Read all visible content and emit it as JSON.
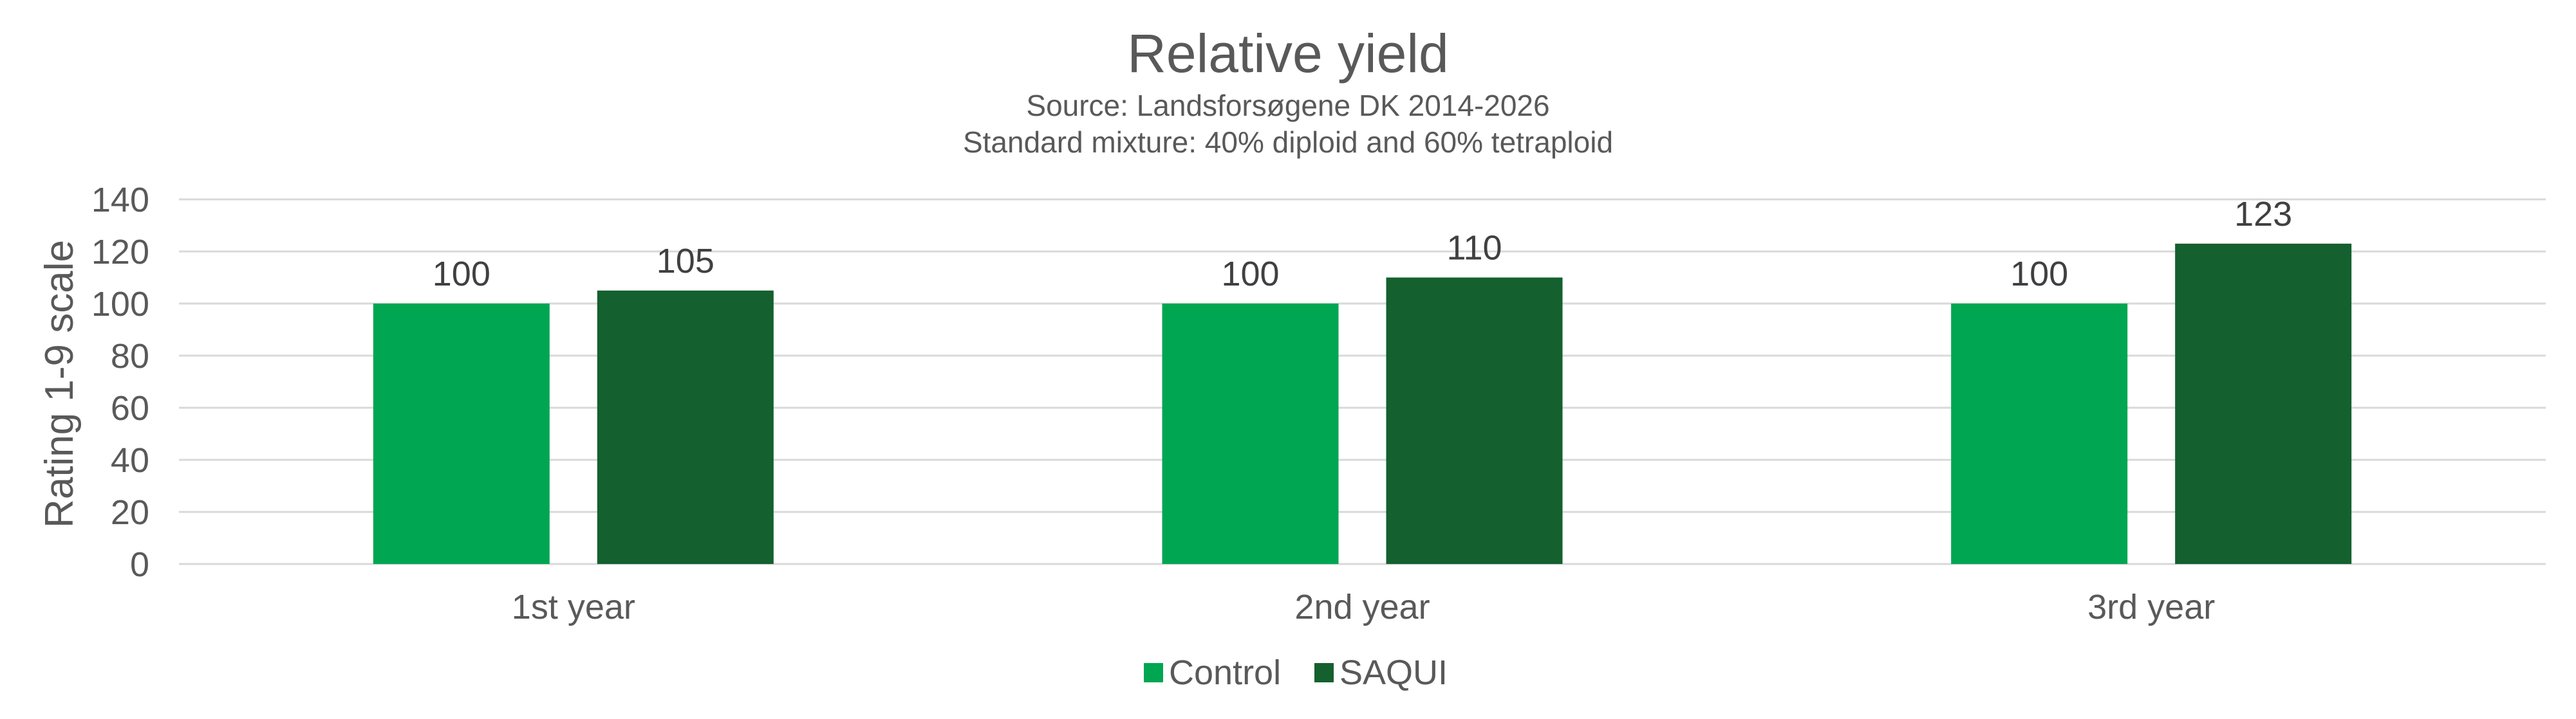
{
  "chart_data": {
    "type": "bar",
    "title": "Relative yield",
    "subtitle": [
      "Source: Landsforsøgene DK 2014-2026",
      "Standard mixture: 40% diploid and 60% tetraploid"
    ],
    "xlabel": "",
    "ylabel": "Rating 1-9 scale",
    "categories": [
      "1st year",
      "2nd year",
      "3rd year"
    ],
    "series": [
      {
        "name": "Control",
        "color": "#00a651",
        "values": [
          100,
          100,
          100
        ]
      },
      {
        "name": "SAQUI",
        "color": "#14602e",
        "values": [
          105,
          110,
          123
        ]
      }
    ],
    "ylim": [
      0,
      140
    ],
    "yticks": [
      0,
      20,
      40,
      60,
      80,
      100,
      120,
      140
    ],
    "grid": true,
    "legend": "bottom-center",
    "data_labels": true
  }
}
